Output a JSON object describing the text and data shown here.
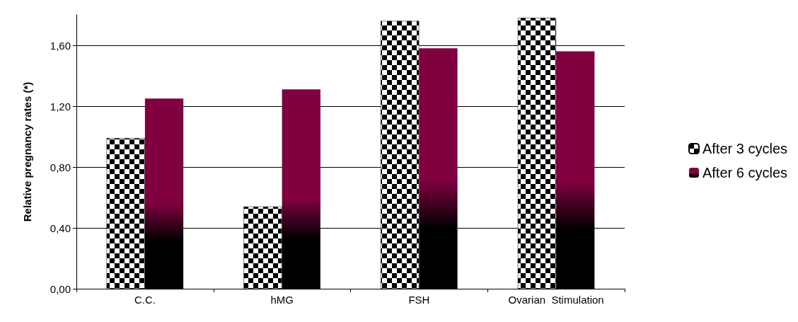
{
  "chart_data": {
    "type": "bar",
    "ylabel": "Relative pregnancy rates (*)",
    "categories": [
      "C.C.",
      "hMG",
      "FSH",
      "Ovarian  Stimulation"
    ],
    "series": [
      {
        "name": "After 3 cycles",
        "color": "#000000",
        "values": [
          0.99,
          0.54,
          1.76,
          1.78
        ]
      },
      {
        "name": "After 6 cycles",
        "color": "#800040",
        "values": [
          1.25,
          1.31,
          1.58,
          1.56
        ]
      }
    ],
    "ylim": [
      0,
      1.8
    ],
    "yticks": [
      {
        "value": 0,
        "label": "0,00"
      },
      {
        "value": 0.4,
        "label": "0,40"
      },
      {
        "value": 0.8,
        "label": "0,80"
      },
      {
        "value": 1.2,
        "label": "1,20"
      },
      {
        "value": 1.6,
        "label": "1,60"
      }
    ],
    "grid": "y",
    "legend": "right"
  }
}
